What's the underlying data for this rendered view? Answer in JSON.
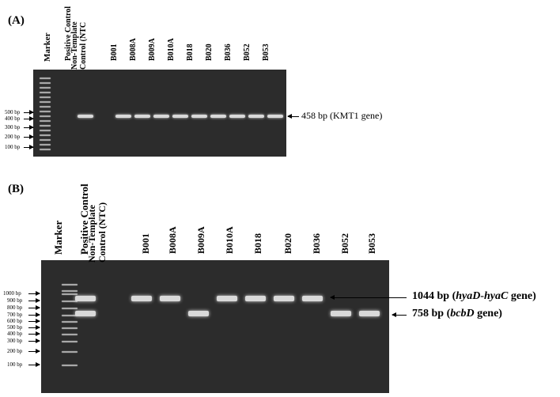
{
  "panel_a": {
    "label": "(A)",
    "lanes": [
      {
        "label": "Marker"
      },
      {
        "label": "Positive Control",
        "band_bp": 458
      },
      {
        "label": "Non-Template\nControl (NTC"
      },
      {
        "label": "B001",
        "band_bp": 458
      },
      {
        "label": "B008A",
        "band_bp": 458
      },
      {
        "label": "B009A",
        "band_bp": 458
      },
      {
        "label": "B010A",
        "band_bp": 458
      },
      {
        "label": "B018",
        "band_bp": 458
      },
      {
        "label": "B020",
        "band_bp": 458
      },
      {
        "label": "B036",
        "band_bp": 458
      },
      {
        "label": "B052",
        "band_bp": 458
      },
      {
        "label": "B053",
        "band_bp": 458
      }
    ],
    "marker_labels": [
      "500 bp",
      "400 bp",
      "300 bp",
      "200 bp",
      "100 bp"
    ],
    "annotation": {
      "size": "458 bp",
      "gene": "(KMT1 gene)"
    }
  },
  "panel_b": {
    "label": "(B)",
    "lanes": [
      {
        "label": "Marker"
      },
      {
        "label": "Positive Control",
        "band_bp": [
          1044,
          758
        ]
      },
      {
        "label": "Non-Template\nControl (NTC)"
      },
      {
        "label": "B001",
        "band_bp": [
          1044
        ]
      },
      {
        "label": "B008A",
        "band_bp": [
          1044
        ]
      },
      {
        "label": "B009A",
        "band_bp": [
          758
        ]
      },
      {
        "label": "B010A",
        "band_bp": [
          1044
        ]
      },
      {
        "label": "B018",
        "band_bp": [
          1044
        ]
      },
      {
        "label": "B020",
        "band_bp": [
          1044
        ]
      },
      {
        "label": "B036",
        "band_bp": [
          1044
        ]
      },
      {
        "label": "B052",
        "band_bp": [
          758
        ]
      },
      {
        "label": "B053",
        "band_bp": [
          758
        ]
      }
    ],
    "marker_labels": [
      "1000 bp",
      "900 bp",
      "800 bp",
      "700 bp",
      "600 bp",
      "500 bp",
      "400 bp",
      "300 bp",
      "200 bp",
      "100 bp"
    ],
    "annotations": [
      {
        "size": "1044 bp",
        "gene_open": "(",
        "gene_italic": "hyaD-hyaC",
        "gene_close": " gene)"
      },
      {
        "size": "758 bp",
        "gene_open": "(",
        "gene_italic": "bcbD",
        "gene_close": " gene)"
      }
    ]
  },
  "colors": {
    "gel": "#2c2c2c",
    "band": "#d9d9d9",
    "marker_band": "#a8a8a8"
  }
}
